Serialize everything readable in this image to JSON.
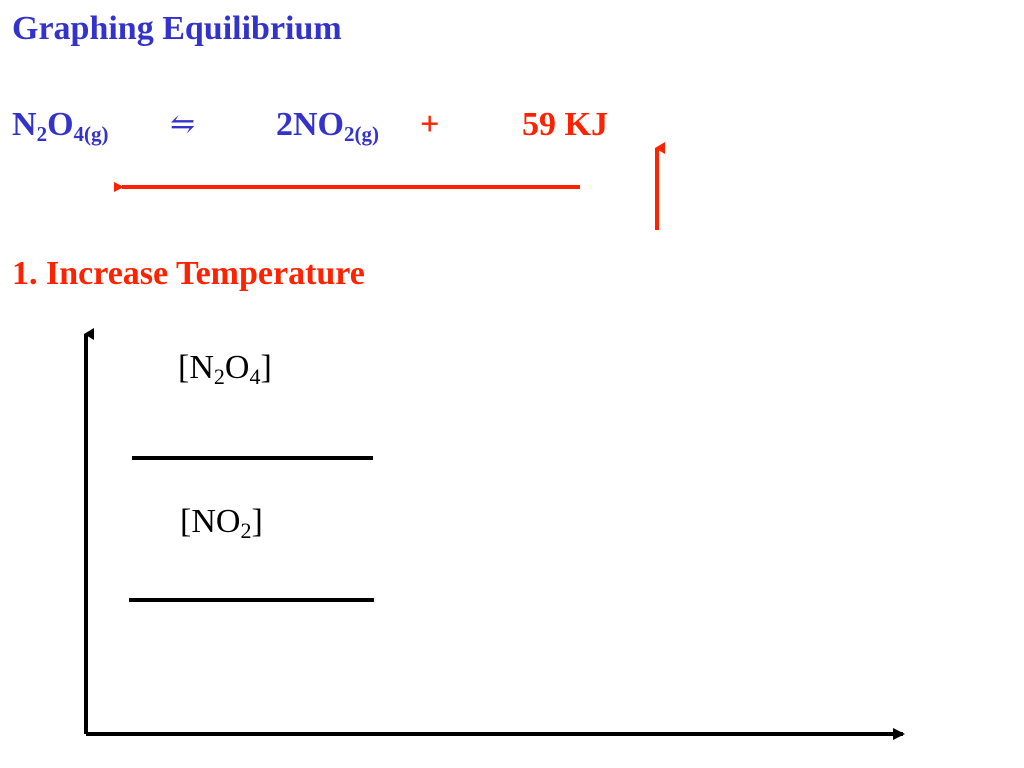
{
  "colors": {
    "heading": "#3333cc",
    "accent": "#ff2200",
    "axis": "#000000",
    "text": "#000000"
  },
  "title": "Graphing Equilibrium",
  "equation": {
    "reactant": {
      "base1": "N",
      "sub1": "2",
      "base2": "O",
      "sub2": "4(g)"
    },
    "arrow": "⇋",
    "product": {
      "base": "2NO",
      "sub": "2(g)"
    },
    "plus": "+",
    "energy": "59 KJ"
  },
  "step": "1. Increase Temperature",
  "graph": {
    "n2o4_label": {
      "open": "[N",
      "sub1": "2",
      "mid": "O",
      "sub2": "4",
      "close": "]"
    },
    "no2_label": {
      "open": "[NO",
      "sub": "2",
      "close": "]"
    }
  }
}
